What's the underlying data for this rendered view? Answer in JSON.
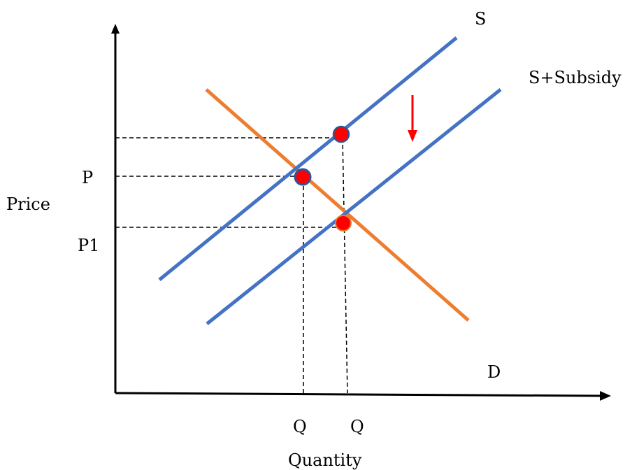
{
  "axes": {
    "y_label": "Price",
    "x_label": "Quantity"
  },
  "curves": {
    "supply": {
      "label": "S",
      "color": "#4472C4"
    },
    "supply_subsidy": {
      "label": "S+Subsidy",
      "color": "#4472C4"
    },
    "demand": {
      "label": "D",
      "color": "#ED7D31"
    }
  },
  "price_labels": {
    "original": "P",
    "new": "P1"
  },
  "quantity_labels": {
    "original": "Q",
    "new": "Q"
  },
  "colors": {
    "axis": "#000000",
    "arrow": "#FF0000",
    "marker_red": "#FF0000",
    "marker_outline": "#2F5597",
    "guide_line": "#000000"
  }
}
